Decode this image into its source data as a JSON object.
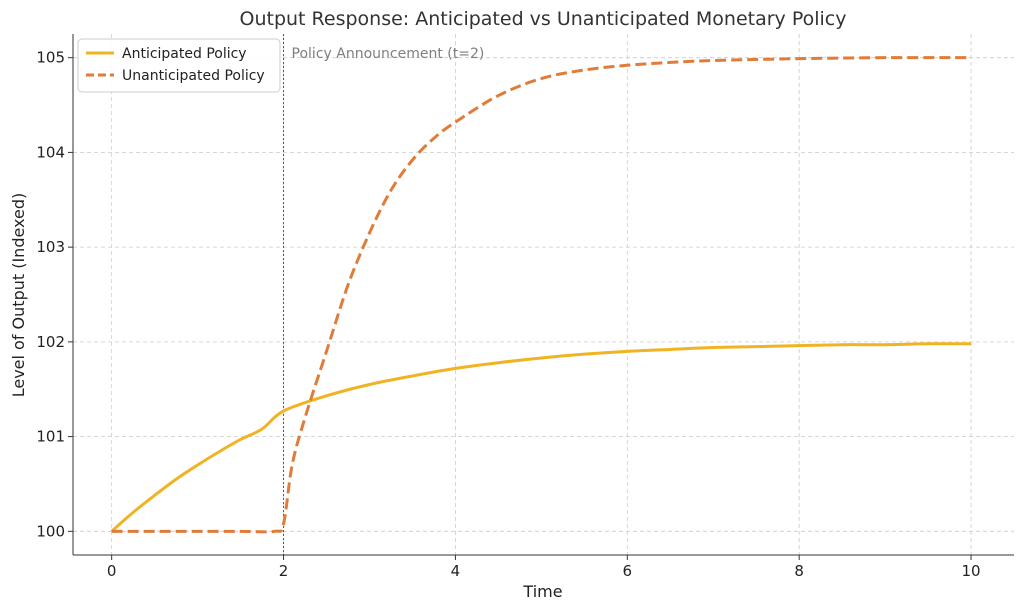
{
  "chart_data": {
    "type": "line",
    "title": "Output Response: Anticipated vs Unanticipated Monetary Policy",
    "xlabel": "Time",
    "ylabel": "Level of Output (Indexed)",
    "xlim": [
      -0.45,
      10.5
    ],
    "ylim": [
      99.75,
      105.25
    ],
    "xticks": [
      0,
      2,
      4,
      6,
      8,
      10
    ],
    "yticks": [
      100,
      101,
      102,
      103,
      104,
      105
    ],
    "grid": true,
    "legend_position": "top-left",
    "series": [
      {
        "name": "Anticipated Policy",
        "color": "#f0b323",
        "style": "solid",
        "x": [
          0,
          0.25,
          0.5,
          0.75,
          1,
          1.25,
          1.5,
          1.75,
          2,
          2.5,
          3,
          3.5,
          4,
          4.5,
          5,
          5.5,
          6,
          6.5,
          7,
          7.5,
          8,
          8.5,
          9,
          9.5,
          10
        ],
        "y": [
          100,
          100.2,
          100.38,
          100.55,
          100.7,
          100.84,
          100.97,
          101.08,
          101.27,
          101.43,
          101.55,
          101.64,
          101.72,
          101.78,
          101.83,
          101.87,
          101.9,
          101.92,
          101.94,
          101.95,
          101.96,
          101.97,
          101.97,
          101.98,
          101.98
        ]
      },
      {
        "name": "Unanticipated Policy",
        "color": "#e07b39",
        "style": "dashed",
        "x": [
          0,
          0.5,
          1,
          1.5,
          1.9,
          2,
          2.1,
          2.25,
          2.5,
          2.75,
          3,
          3.25,
          3.5,
          3.75,
          4,
          4.5,
          5,
          5.5,
          6,
          6.5,
          7,
          8,
          9,
          10
        ],
        "y": [
          100,
          100,
          100,
          100,
          100,
          100.08,
          100.7,
          101.2,
          101.9,
          102.6,
          103.15,
          103.6,
          103.92,
          104.15,
          104.32,
          104.6,
          104.78,
          104.87,
          104.92,
          104.95,
          104.97,
          104.99,
          105,
          105
        ]
      }
    ],
    "annotations": [
      {
        "type": "vline",
        "x": 2,
        "text": "Policy Announcement (t=2)",
        "color": "#7f7f7f"
      }
    ]
  }
}
